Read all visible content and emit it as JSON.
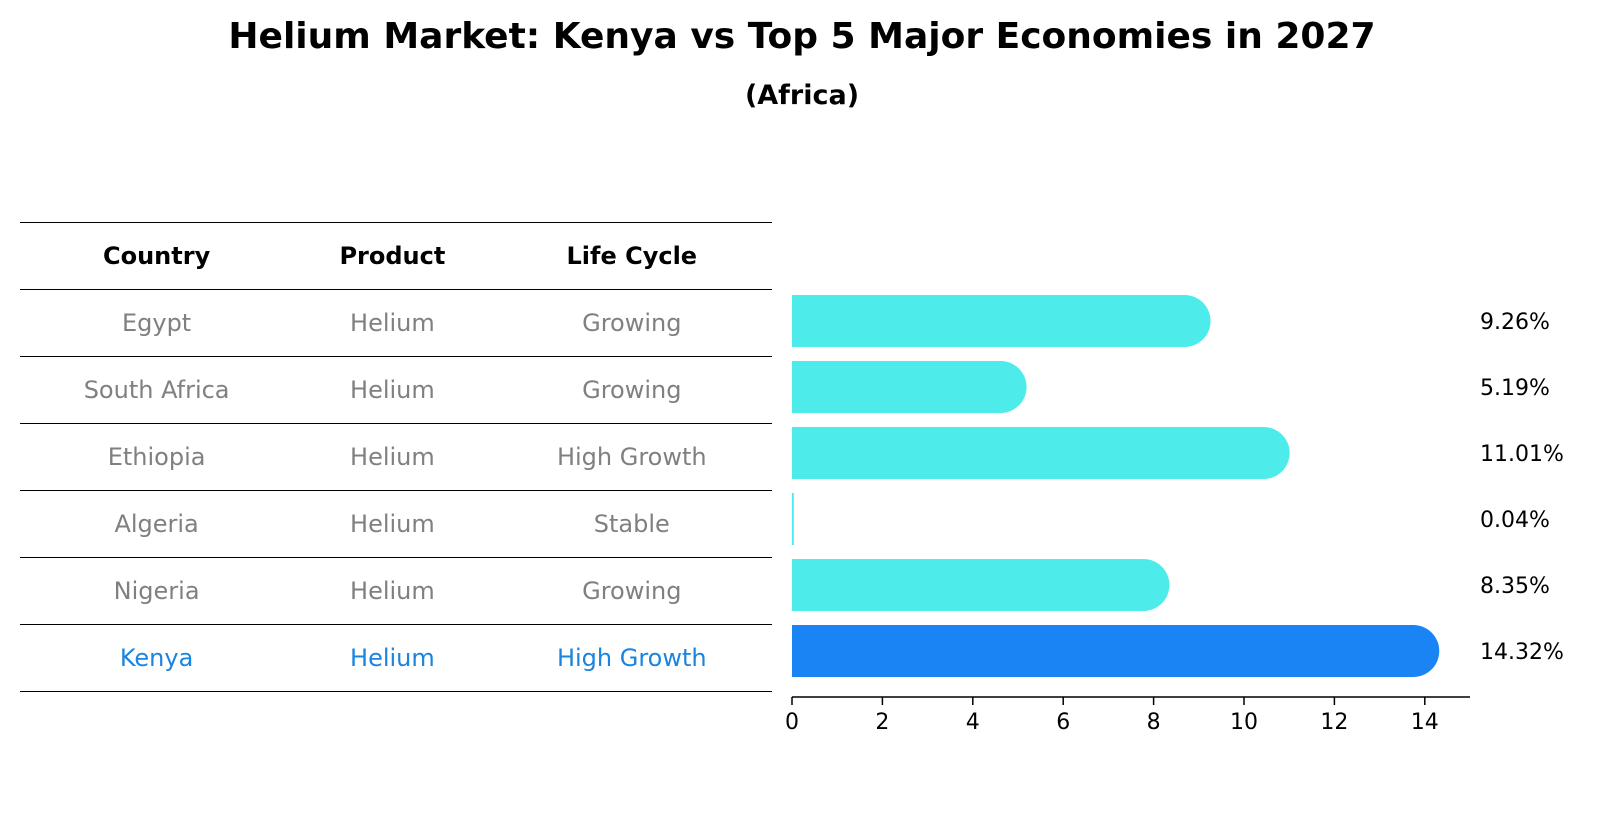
{
  "title": "Helium Market: Kenya vs Top 5 Major Economies in 2027",
  "subtitle": "(Africa)",
  "table": {
    "headers": [
      "Country",
      "Product",
      "Life Cycle"
    ],
    "rows": [
      {
        "country": "Egypt",
        "product": "Helium",
        "life_cycle": "Growing"
      },
      {
        "country": "South Africa",
        "product": "Helium",
        "life_cycle": "Growing"
      },
      {
        "country": "Ethiopia",
        "product": "Helium",
        "life_cycle": "High Growth"
      },
      {
        "country": "Algeria",
        "product": "Helium",
        "life_cycle": "Stable"
      },
      {
        "country": "Nigeria",
        "product": "Helium",
        "life_cycle": "Growing"
      },
      {
        "country": "Kenya",
        "product": "Helium",
        "life_cycle": "High Growth"
      }
    ]
  },
  "chart_data": {
    "type": "bar",
    "orientation": "horizontal",
    "title": "Helium Market: Kenya vs Top 5 Major Economies in 2027",
    "subtitle": "(Africa)",
    "categories": [
      "Egypt",
      "South Africa",
      "Ethiopia",
      "Algeria",
      "Nigeria",
      "Kenya"
    ],
    "values": [
      9.26,
      5.19,
      11.01,
      0.04,
      8.35,
      14.32
    ],
    "value_labels": [
      "9.26%",
      "5.19%",
      "11.01%",
      "0.04%",
      "8.35%",
      "14.32%"
    ],
    "highlight": "Kenya",
    "xlabel": "",
    "ylabel": "",
    "xlim": [
      0,
      15
    ],
    "xticks": [
      0,
      2,
      4,
      6,
      8,
      10,
      12,
      14
    ],
    "colors": {
      "default": "#4deceb",
      "highlight": "#1a84f5",
      "highlight_text": "#1a84e0",
      "muted_text": "#808080"
    }
  }
}
